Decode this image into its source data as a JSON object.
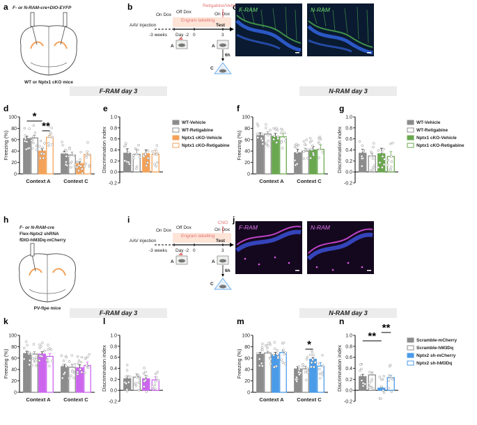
{
  "panel_letters": {
    "a": "a",
    "b": "b",
    "c": "c",
    "d": "d",
    "e": "e",
    "f": "f",
    "g": "g",
    "h": "h",
    "i": "i",
    "j": "j",
    "k": "k",
    "l": "l",
    "m": "m",
    "n": "n"
  },
  "section_titles": {
    "top_left": "F-RAM day 3",
    "top_right": "N-RAM day 3",
    "bottom_left": "F-RAM day 3",
    "bottom_right": "N-RAM day 3"
  },
  "panel_a": {
    "header": "F- or N-RAM-cre+DIO-EYFP",
    "footer": "WT or Nptx1 cKO mice"
  },
  "panel_h": {
    "line1": "F- or N-RAM-cre",
    "line2": "Flex-Nptx2 shRNA",
    "line3": "fDIO-hM3Dq-mCherry",
    "footer": "PV-flpe mice"
  },
  "timeline_b": {
    "on_dox_1": "On Dox",
    "off_dox": "Off Dox",
    "on_dox_2": "On Dox",
    "engram": "Engram labelling",
    "treatment": "Retigabine/Vehicle",
    "aav": "AAV injection",
    "test": "Test",
    "t_minus3w": "-3 weeks",
    "t_day_minus2": "Day -2",
    "t_0": "0",
    "t_3": "3",
    "ctx_a1": "A",
    "ctx_a2": "A",
    "ctx_c": "C",
    "delay": "6h"
  },
  "timeline_i": {
    "on_dox_1": "On Dox",
    "off_dox": "Off Dox",
    "on_dox_2": "On Dox",
    "engram": "Engram labelling",
    "treatment": "CNO",
    "aav": "AAV injection",
    "test": "Test",
    "t_minus3w": "-3 weeks",
    "t_day_minus2": "Day -2",
    "t_0": "0",
    "t_3": "3",
    "ctx_a1": "A",
    "ctx_a2": "A",
    "ctx_c": "C",
    "delay": "6h"
  },
  "images": {
    "c_left": "F-RAM",
    "c_right": "N-RAM",
    "j_left": "F-RAM",
    "j_right": "N-RAM"
  },
  "colors": {
    "grey": "#8c8c8c",
    "orange": "#f4a259",
    "green": "#6aa84f",
    "purple": "#cc66ee",
    "blue": "#4a9be8",
    "pink": "#e57373"
  },
  "chart_data": [
    {
      "id": "d",
      "type": "bar",
      "ylabel": "Freezing (%)",
      "ylim": [
        0,
        100
      ],
      "yticks": [
        0,
        20,
        40,
        60,
        80,
        100
      ],
      "categories": [
        "Context A",
        "Context C"
      ],
      "series": [
        {
          "name": "WT-Vehicle",
          "values": [
            62,
            35
          ],
          "errors": [
            4,
            5
          ]
        },
        {
          "name": "WT-Retigabine",
          "values": [
            63,
            33
          ],
          "errors": [
            5,
            5
          ]
        },
        {
          "name": "Nptx1 cKO-Vehicle",
          "values": [
            40,
            18
          ],
          "errors": [
            4,
            3
          ]
        },
        {
          "name": "Nptx1 cKO-Retigabine",
          "values": [
            64,
            34
          ],
          "errors": [
            4,
            5
          ]
        }
      ],
      "significance": [
        "*",
        "**"
      ]
    },
    {
      "id": "e",
      "type": "bar",
      "ylabel": "Discrimination index",
      "ylim": [
        -0.2,
        1.0
      ],
      "yticks": [
        -0.2,
        0.0,
        0.2,
        0.4,
        0.6,
        0.8,
        1.0
      ],
      "categories": [
        ""
      ],
      "series": [
        {
          "name": "WT-Vehicle",
          "values": [
            0.34
          ],
          "errors": [
            0.08
          ]
        },
        {
          "name": "WT-Retigabine",
          "values": [
            0.32
          ],
          "errors": [
            0.08
          ]
        },
        {
          "name": "Nptx1 cKO-Vehicle",
          "values": [
            0.33
          ],
          "errors": [
            0.07
          ]
        },
        {
          "name": "Nptx1 cKO-Retigabine",
          "values": [
            0.32
          ],
          "errors": [
            0.07
          ]
        }
      ]
    },
    {
      "id": "f",
      "type": "bar",
      "ylabel": "Freezing (%)",
      "ylim": [
        0,
        100
      ],
      "yticks": [
        0,
        20,
        40,
        60,
        80,
        100
      ],
      "categories": [
        "Context A",
        "Context C"
      ],
      "series": [
        {
          "name": "WT-Vehicle",
          "values": [
            67,
            37
          ],
          "errors": [
            5,
            6
          ]
        },
        {
          "name": "WT-Retigabine",
          "values": [
            70,
            40
          ],
          "errors": [
            4,
            5
          ]
        },
        {
          "name": "Nptx1 cKO-Vehicle",
          "values": [
            66,
            42
          ],
          "errors": [
            5,
            6
          ]
        },
        {
          "name": "Nptx1 cKO-Retigabine",
          "values": [
            65,
            43
          ],
          "errors": [
            6,
            8
          ]
        }
      ]
    },
    {
      "id": "g",
      "type": "bar",
      "ylabel": "Discrimination index",
      "ylim": [
        -0.2,
        1.0
      ],
      "yticks": [
        -0.2,
        0.0,
        0.2,
        0.4,
        0.6,
        0.8,
        1.0
      ],
      "categories": [
        ""
      ],
      "series": [
        {
          "name": "WT-Vehicle",
          "values": [
            0.34
          ],
          "errors": [
            0.07
          ]
        },
        {
          "name": "WT-Retigabine",
          "values": [
            0.29
          ],
          "errors": [
            0.05
          ]
        },
        {
          "name": "Nptx1 cKO-Vehicle",
          "values": [
            0.33
          ],
          "errors": [
            0.1
          ]
        },
        {
          "name": "Nptx1 cKO-Retigabine",
          "values": [
            0.28
          ],
          "errors": [
            0.09
          ]
        }
      ]
    },
    {
      "id": "k",
      "type": "bar",
      "ylabel": "Freezing (%)",
      "ylim": [
        0,
        100
      ],
      "yticks": [
        0,
        20,
        40,
        60,
        80,
        100
      ],
      "categories": [
        "Context A",
        "Context C"
      ],
      "series": [
        {
          "name": "Scramble-mCherry",
          "values": [
            68,
            45
          ],
          "errors": [
            4,
            4
          ]
        },
        {
          "name": "Scramble-hM3Dq",
          "values": [
            67,
            44
          ],
          "errors": [
            4,
            5
          ]
        },
        {
          "name": "Nptx2 sh-mCherry",
          "values": [
            67,
            43
          ],
          "errors": [
            4,
            5
          ]
        },
        {
          "name": "Nptx2 sh-hM3Dq",
          "values": [
            63,
            47
          ],
          "errors": [
            5,
            6
          ]
        }
      ]
    },
    {
      "id": "l",
      "type": "bar",
      "ylabel": "Discrimination index",
      "ylim": [
        -0.2,
        1.0
      ],
      "yticks": [
        -0.2,
        0.0,
        0.2,
        0.4,
        0.6,
        0.8,
        1.0
      ],
      "categories": [
        ""
      ],
      "series": [
        {
          "name": "Scramble-mCherry",
          "values": [
            0.21
          ],
          "errors": [
            0.05
          ]
        },
        {
          "name": "Scramble-hM3Dq",
          "values": [
            0.24
          ],
          "errors": [
            0.06
          ]
        },
        {
          "name": "Nptx2 sh-mCherry",
          "values": [
            0.21
          ],
          "errors": [
            0.06
          ]
        },
        {
          "name": "Nptx2 sh-hM3Dq",
          "values": [
            0.19
          ],
          "errors": [
            0.06
          ]
        }
      ]
    },
    {
      "id": "m",
      "type": "bar",
      "ylabel": "Freezing (%)",
      "ylim": [
        0,
        100
      ],
      "yticks": [
        0,
        20,
        40,
        60,
        80,
        100
      ],
      "categories": [
        "Context A",
        "Context C"
      ],
      "series": [
        {
          "name": "Scramble-mCherry",
          "values": [
            67,
            41
          ],
          "errors": [
            3,
            4
          ]
        },
        {
          "name": "Scramble-hM3Dq",
          "values": [
            69,
            41
          ],
          "errors": [
            3,
            5
          ]
        },
        {
          "name": "Nptx2 sh-mCherry",
          "values": [
            66,
            58
          ],
          "errors": [
            4,
            3
          ]
        },
        {
          "name": "Nptx2 sh-hM3Dq",
          "values": [
            70,
            46
          ],
          "errors": [
            4,
            6
          ]
        }
      ],
      "significance": [
        "*"
      ]
    },
    {
      "id": "n",
      "type": "bar",
      "ylabel": "Discrimination index",
      "ylim": [
        -0.2,
        1.0
      ],
      "yticks": [
        -0.2,
        0.0,
        0.2,
        0.4,
        0.6,
        0.8,
        1.0
      ],
      "categories": [
        ""
      ],
      "series": [
        {
          "name": "Scramble-mCherry",
          "values": [
            0.25
          ],
          "errors": [
            0.04
          ]
        },
        {
          "name": "Scramble-hM3Dq",
          "values": [
            0.28
          ],
          "errors": [
            0.05
          ]
        },
        {
          "name": "Nptx2 sh-mCherry",
          "values": [
            0.04
          ],
          "errors": [
            0.02
          ]
        },
        {
          "name": "Nptx2 sh-hM3Dq",
          "values": [
            0.23
          ],
          "errors": [
            0.04
          ]
        }
      ],
      "significance": [
        "**",
        "**"
      ]
    }
  ],
  "legends": {
    "e": [
      "WT-Vehicle",
      "WT-Retigabine",
      "Nptx1 cKO-Vehicle",
      "Nptx1 cKO-Retigabine"
    ],
    "g": [
      "WT-Vehicle",
      "WT-Retigabine",
      "Nptx1 cKO-Vehicle",
      "Nptx1 cKO-Retigabine"
    ],
    "n": [
      "Scramble-mCherry",
      "Scramble-hM3Dq",
      "Nptx2 sh-mCherry",
      "Nptx2 sh-hM3Dq"
    ]
  }
}
